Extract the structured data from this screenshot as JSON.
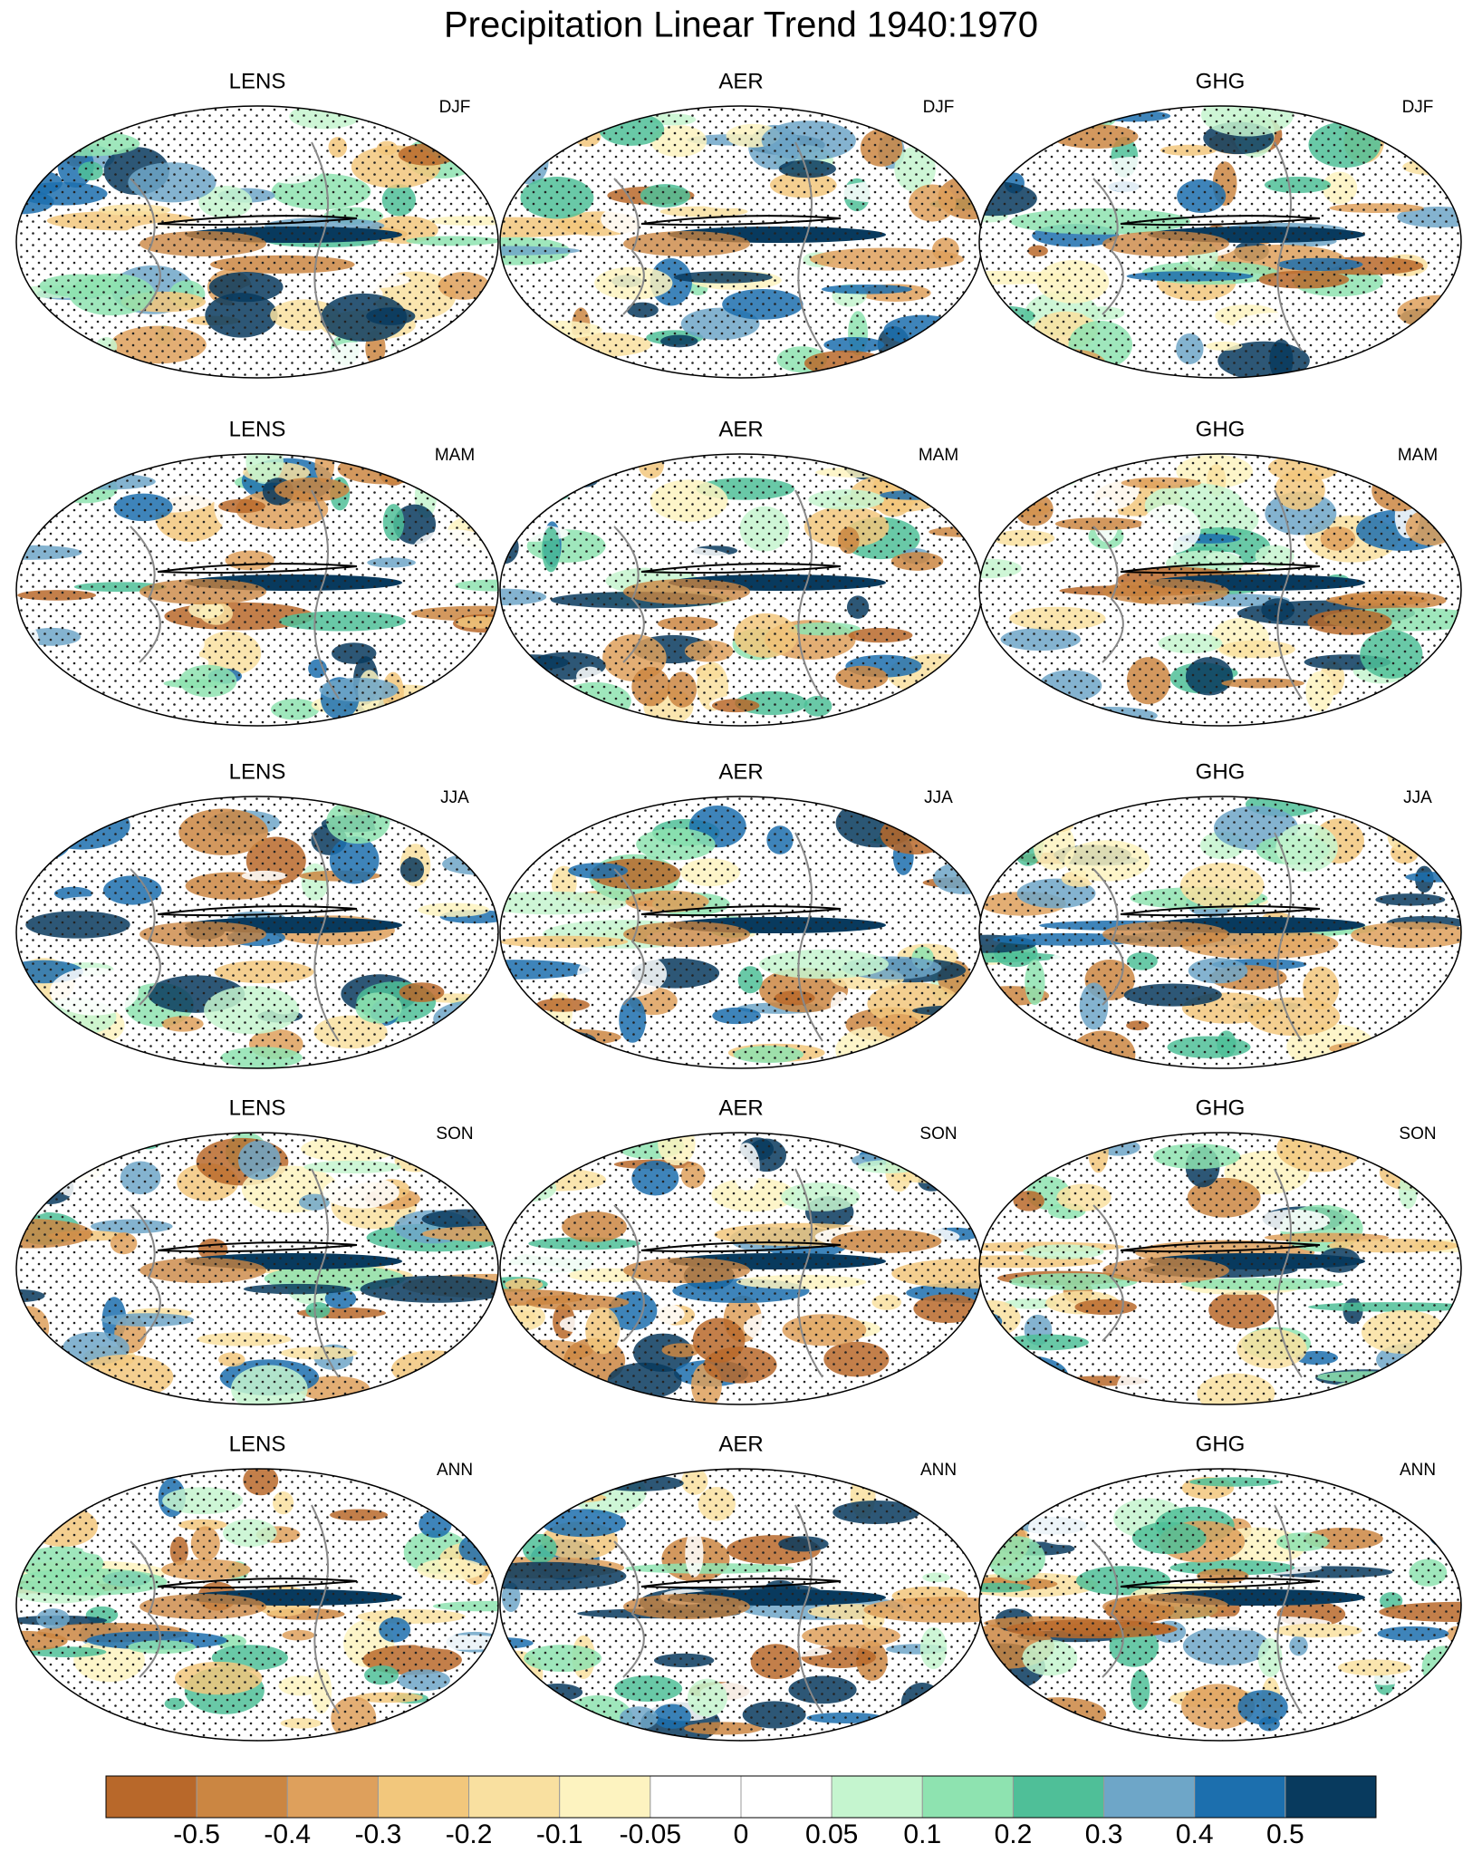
{
  "title": "Precipitation Linear Trend 1940:1970",
  "panels": [
    {
      "model": "LENS",
      "season": "DJF"
    },
    {
      "model": "AER",
      "season": "DJF"
    },
    {
      "model": "GHG",
      "season": "DJF"
    },
    {
      "model": "LENS",
      "season": "MAM"
    },
    {
      "model": "AER",
      "season": "MAM"
    },
    {
      "model": "GHG",
      "season": "MAM"
    },
    {
      "model": "LENS",
      "season": "JJA"
    },
    {
      "model": "AER",
      "season": "JJA"
    },
    {
      "model": "GHG",
      "season": "JJA"
    },
    {
      "model": "LENS",
      "season": "SON"
    },
    {
      "model": "AER",
      "season": "SON"
    },
    {
      "model": "GHG",
      "season": "SON"
    },
    {
      "model": "LENS",
      "season": "ANN"
    },
    {
      "model": "AER",
      "season": "ANN"
    },
    {
      "model": "GHG",
      "season": "ANN"
    }
  ],
  "colorbar": {
    "colors": [
      "#b8682a",
      "#cb8642",
      "#dea05c",
      "#f2c77c",
      "#f9e0a0",
      "#fdf3c0",
      "#ffffff",
      "#ffffff",
      "#c5f5cf",
      "#8ee3b0",
      "#4fbf98",
      "#6ea6c8",
      "#1c6fae",
      "#083a5e"
    ],
    "ticks": [
      -0.5,
      -0.4,
      -0.3,
      -0.2,
      -0.1,
      -0.05,
      0,
      0.05,
      0.1,
      0.2,
      0.3,
      0.4,
      0.5
    ]
  }
}
